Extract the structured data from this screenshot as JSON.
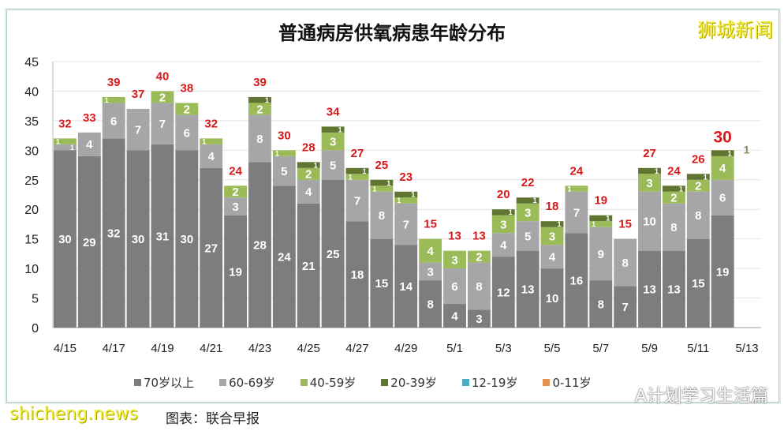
{
  "brand_watermark": "狮城新闻",
  "site_watermark": "shicheng.news",
  "source": "图表：联合早报",
  "wechat_watermark": "A计划学习生活篇",
  "chart_data": {
    "type": "stacked-bar",
    "title": "普通病房供氧病患年龄分布",
    "xlabel": "",
    "ylabel": "",
    "ylim": [
      0,
      45
    ],
    "yticks": [
      0,
      5,
      10,
      15,
      20,
      25,
      30,
      35,
      40,
      45
    ],
    "grid": true,
    "legend_position": "bottom",
    "categories": [
      "4/15",
      "4/16",
      "4/17",
      "4/18",
      "4/19",
      "4/20",
      "4/21",
      "4/22",
      "4/23",
      "4/24",
      "4/25",
      "4/26",
      "4/27",
      "4/28",
      "4/29",
      "4/30",
      "5/1",
      "5/2",
      "5/3",
      "5/4",
      "5/5",
      "5/6",
      "5/7",
      "5/8",
      "5/9",
      "5/10",
      "5/11",
      "5/12",
      "5/13"
    ],
    "xtick_labels": [
      "4/15",
      "4/17",
      "4/19",
      "4/21",
      "4/23",
      "4/25",
      "4/27",
      "4/29",
      "5/1",
      "5/3",
      "5/5",
      "5/7",
      "5/9",
      "5/11",
      "5/13"
    ],
    "series": [
      {
        "name": "70岁以上",
        "color": "#7d7c7f",
        "values": [
          30,
          29,
          32,
          30,
          31,
          30,
          27,
          19,
          28,
          24,
          21,
          25,
          18,
          15,
          14,
          8,
          4,
          3,
          12,
          13,
          10,
          16,
          8,
          7,
          13,
          13,
          15,
          19,
          null
        ]
      },
      {
        "name": "60-69岁",
        "color": "#a6a6a8",
        "values": [
          1,
          4,
          6,
          7,
          7,
          6,
          4,
          3,
          8,
          5,
          4,
          5,
          7,
          8,
          7,
          3,
          6,
          8,
          4,
          5,
          4,
          7,
          9,
          8,
          10,
          8,
          8,
          6,
          null
        ]
      },
      {
        "name": "40-59岁",
        "color": "#9bbb59",
        "values": [
          1,
          0,
          1,
          0,
          2,
          2,
          1,
          2,
          2,
          1,
          2,
          3,
          1,
          1,
          1,
          4,
          3,
          2,
          3,
          3,
          3,
          1,
          1,
          0,
          3,
          2,
          2,
          4,
          null
        ]
      },
      {
        "name": "20-39岁",
        "color": "#5f7530",
        "values": [
          0,
          0,
          0,
          0,
          0,
          0,
          0,
          0,
          1,
          0,
          1,
          1,
          1,
          1,
          1,
          0,
          0,
          0,
          1,
          1,
          1,
          0,
          1,
          0,
          1,
          1,
          1,
          1,
          null
        ]
      },
      {
        "name": "12-19岁",
        "color": "#4bacc6",
        "values": [
          0,
          0,
          0,
          0,
          0,
          0,
          0,
          0,
          0,
          0,
          0,
          0,
          0,
          0,
          0,
          0,
          0,
          0,
          0,
          0,
          0,
          0,
          0,
          0,
          0,
          0,
          0,
          0,
          null
        ]
      },
      {
        "name": "0-11岁",
        "color": "#e39451",
        "values": [
          0,
          0,
          0,
          0,
          0,
          0,
          0,
          0,
          0,
          0,
          0,
          0,
          0,
          0,
          0,
          0,
          0,
          0,
          0,
          0,
          0,
          0,
          0,
          0,
          0,
          0,
          0,
          0,
          null
        ]
      }
    ],
    "totals": [
      32,
      33,
      39,
      37,
      40,
      38,
      32,
      24,
      39,
      30,
      28,
      34,
      27,
      25,
      23,
      15,
      13,
      13,
      20,
      22,
      18,
      24,
      19,
      15,
      27,
      24,
      26,
      30,
      null
    ],
    "total_label_color": "#d7191c",
    "latest_annotation": "1"
  }
}
